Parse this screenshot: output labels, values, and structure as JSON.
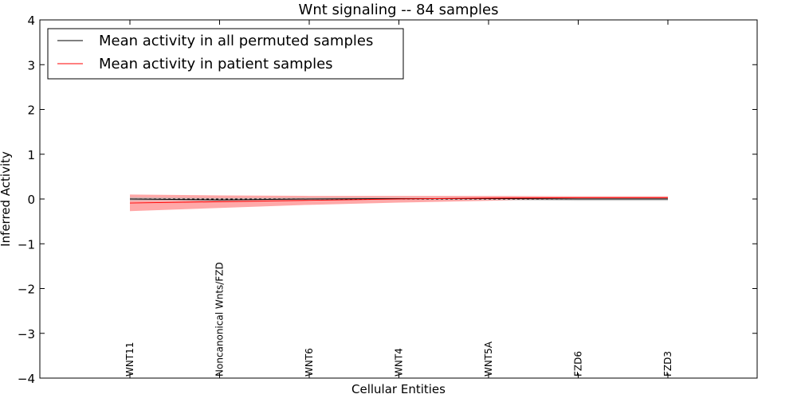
{
  "chart_data": {
    "type": "line",
    "title": "Wnt signaling -- 84 samples",
    "xlabel": "Cellular Entities",
    "ylabel": "Inferred Activity",
    "ylim": [
      -4,
      4
    ],
    "yticks": [
      4,
      3,
      2,
      1,
      0,
      -1,
      -2,
      -3,
      -4
    ],
    "ytick_labels": [
      "4",
      "3",
      "2",
      "1",
      "0",
      "−1",
      "−2",
      "−3",
      "−4"
    ],
    "categories": [
      "WNT11",
      "Noncanonical Wnts/FZD",
      "WNT6",
      "WNT4",
      "WNT5A",
      "FZD6",
      "FZD3"
    ],
    "legend_position": "top-left",
    "series": [
      {
        "name": "Mean activity in all permuted samples",
        "color": "#000000",
        "values": [
          0.0,
          -0.02,
          0.0,
          0.01,
          0.01,
          0.0,
          0.0
        ],
        "band_low": [
          -0.04,
          -0.04,
          -0.02,
          -0.02,
          -0.02,
          -0.04,
          -0.04
        ],
        "band_high": [
          0.04,
          0.02,
          0.03,
          0.03,
          0.03,
          0.03,
          0.03
        ],
        "band_color": "#bbbbbb"
      },
      {
        "name": "Mean activity in patient samples",
        "color": "#ff0000",
        "values": [
          -0.09,
          -0.06,
          -0.03,
          0.0,
          0.02,
          0.03,
          0.03
        ],
        "band_low": [
          -0.27,
          -0.2,
          -0.13,
          -0.08,
          -0.04,
          0.0,
          0.0
        ],
        "band_high": [
          0.1,
          0.08,
          0.07,
          0.07,
          0.07,
          0.06,
          0.06
        ],
        "band_color": "#ff9999"
      }
    ]
  }
}
